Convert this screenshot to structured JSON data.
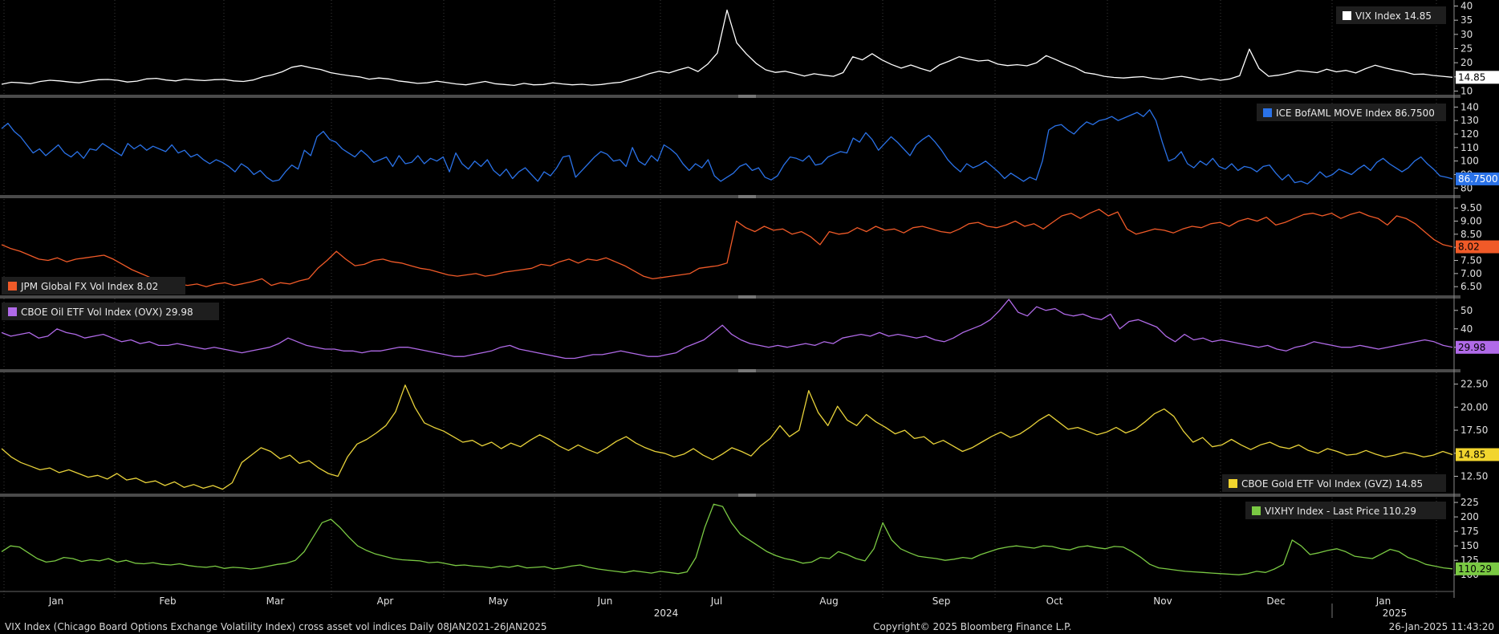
{
  "chart_data": {
    "type": "line",
    "months": [
      "Jan",
      "Feb",
      "Mar",
      "Apr",
      "May",
      "Jun",
      "Jul",
      "Aug",
      "Sep",
      "Oct",
      "Nov",
      "Dec",
      "Jan"
    ],
    "year_labels": [
      "2024",
      "2025"
    ],
    "panels": [
      {
        "name": "VIX Index",
        "legend": "VIX Index 14.85",
        "last_label": "14.85",
        "color": "#ffffff",
        "badge_color": "#ffffff",
        "badge_text_color": "#000000",
        "legend_position": "top-right",
        "ylim": [
          9,
          41
        ],
        "ticks": [
          10,
          15,
          20,
          25,
          30,
          35,
          40
        ],
        "tick_labels": [
          "10",
          "15",
          "20",
          "25",
          "30",
          "35",
          "40"
        ],
        "values": [
          12.4,
          13.1,
          12.9,
          12.6,
          13.4,
          13.8,
          13.6,
          13.2,
          12.9,
          13.5,
          14.0,
          14.1,
          13.8,
          13.2,
          13.5,
          14.3,
          14.5,
          13.9,
          13.6,
          14.2,
          13.9,
          13.7,
          14.0,
          14.1,
          13.6,
          13.4,
          13.9,
          15.0,
          15.7,
          16.8,
          18.4,
          19.0,
          18.2,
          17.6,
          16.5,
          15.9,
          15.4,
          15.0,
          14.2,
          14.6,
          14.3,
          13.6,
          13.2,
          12.7,
          12.9,
          13.5,
          13.0,
          12.5,
          12.2,
          12.8,
          13.4,
          12.6,
          12.3,
          12.0,
          12.7,
          12.2,
          12.3,
          12.9,
          12.5,
          12.2,
          12.4,
          12.1,
          12.3,
          12.8,
          13.1,
          14.1,
          15.0,
          16.2,
          17.0,
          16.4,
          17.5,
          18.4,
          16.9,
          19.5,
          23.4,
          38.6,
          27.0,
          23.1,
          19.8,
          17.5,
          16.6,
          17.0,
          16.2,
          15.3,
          16.1,
          15.6,
          15.2,
          16.5,
          22.1,
          21.0,
          23.2,
          21.0,
          19.4,
          18.1,
          19.2,
          18.0,
          17.0,
          19.3,
          20.6,
          22.1,
          21.3,
          20.6,
          20.9,
          19.5,
          19.0,
          19.3,
          18.9,
          20.0,
          22.5,
          21.1,
          19.5,
          18.3,
          16.5,
          16.0,
          15.2,
          14.8,
          14.6,
          14.9,
          15.1,
          14.5,
          14.2,
          14.8,
          15.2,
          14.6,
          13.9,
          14.4,
          13.8,
          14.3,
          15.4,
          24.8,
          18.0,
          15.2,
          15.6,
          16.3,
          17.2,
          16.9,
          16.5,
          17.7,
          16.8,
          17.3,
          16.4,
          17.9,
          19.1,
          18.2,
          17.4,
          16.8,
          15.9,
          16.0,
          15.5,
          15.2,
          14.85
        ]
      },
      {
        "name": "ICE BofAML MOVE Index",
        "legend": "ICE BofAML MOVE Index 86.7500",
        "last_label": "86.7500",
        "color": "#2a72e8",
        "badge_color": "#2a72e8",
        "badge_text_color": "#ffffff",
        "legend_position": "top-right",
        "ylim": [
          76,
          145
        ],
        "ticks": [
          80,
          90,
          100,
          110,
          120,
          130,
          140
        ],
        "tick_labels": [
          "80",
          "90",
          "100",
          "110",
          "120",
          "130",
          "140"
        ],
        "values": [
          124,
          128,
          122,
          118,
          112,
          106,
          109,
          104,
          108,
          112,
          106,
          103,
          107,
          102,
          109,
          108,
          113,
          110,
          107,
          104,
          113,
          109,
          112,
          108,
          111,
          109,
          107,
          112,
          106,
          108,
          103,
          105,
          101,
          98,
          101,
          99,
          96,
          92,
          98,
          95,
          90,
          93,
          88,
          85,
          86,
          92,
          97,
          94,
          108,
          104,
          118,
          122,
          116,
          114,
          109,
          106,
          103,
          108,
          104,
          99,
          101,
          103,
          96,
          104,
          98,
          99,
          104,
          98,
          102,
          100,
          103,
          92,
          106,
          98,
          94,
          100,
          96,
          101,
          93,
          89,
          94,
          87,
          92,
          95,
          90,
          85,
          92,
          89,
          95,
          103,
          104,
          88,
          93,
          98,
          103,
          107,
          105,
          100,
          101,
          96,
          110,
          100,
          97,
          104,
          100,
          112,
          109,
          105,
          98,
          93,
          98,
          95,
          101,
          89,
          85,
          88,
          91,
          96,
          98,
          93,
          95,
          88,
          86,
          89,
          97,
          103,
          102,
          100,
          104,
          97,
          98,
          103,
          105,
          107,
          106,
          117,
          114,
          121,
          116,
          108,
          113,
          118,
          114,
          109,
          104,
          112,
          116,
          119,
          114,
          108,
          101,
          96,
          92,
          98,
          95,
          97,
          100,
          96,
          92,
          87,
          91,
          88,
          85,
          88,
          86,
          100,
          123,
          126,
          127,
          123,
          120,
          125,
          129,
          127,
          130,
          131,
          133,
          130,
          132,
          134,
          136,
          133,
          138,
          130,
          114,
          100,
          102,
          107,
          98,
          95,
          100,
          97,
          102,
          96,
          94,
          98,
          93,
          96,
          95,
          92,
          96,
          97,
          91,
          86,
          90,
          84,
          85,
          83,
          87,
          92,
          88,
          90,
          94,
          92,
          90,
          94,
          97,
          93,
          99,
          102,
          98,
          95,
          92,
          95,
          100,
          103,
          98,
          94,
          89,
          88,
          86.75
        ]
      },
      {
        "name": "JPM Global FX Vol Index",
        "legend": "JPM Global FX Vol Index 8.02",
        "last_label": "8.02",
        "color": "#f05a28",
        "badge_color": "#f05a28",
        "badge_text_color": "#000000",
        "legend_position": "bottom-left",
        "ylim": [
          6.2,
          9.75
        ],
        "ticks": [
          6.5,
          7.0,
          7.5,
          8.0,
          8.5,
          9.0,
          9.5
        ],
        "tick_labels": [
          "6.50",
          "7.00",
          "7.50",
          "8.00",
          "8.50",
          "9.00",
          "9.50"
        ],
        "values": [
          8.1,
          7.95,
          7.85,
          7.7,
          7.55,
          7.5,
          7.6,
          7.45,
          7.55,
          7.6,
          7.65,
          7.7,
          7.55,
          7.35,
          7.15,
          7.0,
          6.85,
          6.75,
          6.65,
          6.6,
          6.55,
          6.6,
          6.5,
          6.6,
          6.65,
          6.55,
          6.62,
          6.7,
          6.8,
          6.55,
          6.65,
          6.6,
          6.72,
          6.8,
          7.2,
          7.5,
          7.85,
          7.55,
          7.3,
          7.35,
          7.5,
          7.55,
          7.45,
          7.4,
          7.3,
          7.2,
          7.15,
          7.05,
          6.95,
          6.9,
          6.95,
          7.0,
          6.9,
          6.95,
          7.05,
          7.1,
          7.15,
          7.2,
          7.35,
          7.3,
          7.45,
          7.55,
          7.4,
          7.55,
          7.5,
          7.6,
          7.45,
          7.3,
          7.1,
          6.9,
          6.8,
          6.85,
          6.9,
          6.95,
          7.0,
          7.2,
          7.25,
          7.3,
          7.4,
          9.0,
          8.75,
          8.6,
          8.8,
          8.65,
          8.7,
          8.5,
          8.6,
          8.4,
          8.1,
          8.6,
          8.5,
          8.55,
          8.75,
          8.6,
          8.8,
          8.65,
          8.7,
          8.55,
          8.75,
          8.8,
          8.7,
          8.6,
          8.55,
          8.7,
          8.9,
          8.95,
          8.8,
          8.75,
          8.85,
          9.0,
          8.8,
          8.9,
          8.7,
          8.95,
          9.2,
          9.3,
          9.1,
          9.3,
          9.45,
          9.2,
          9.35,
          8.7,
          8.5,
          8.6,
          8.7,
          8.65,
          8.55,
          8.7,
          8.8,
          8.75,
          8.9,
          8.95,
          8.8,
          9.0,
          9.1,
          9.0,
          9.15,
          8.85,
          8.95,
          9.1,
          9.25,
          9.3,
          9.2,
          9.3,
          9.1,
          9.25,
          9.35,
          9.2,
          9.1,
          8.85,
          9.2,
          9.1,
          8.9,
          8.6,
          8.3,
          8.1,
          8.02
        ]
      },
      {
        "name": "CBOE Oil ETF Vol Index (OVX)",
        "legend": "CBOE Oil ETF Vol Index (OVX) 29.98",
        "last_label": "29.98",
        "color": "#b06ae8",
        "badge_color": "#b06ae8",
        "badge_text_color": "#000000",
        "legend_position": "top-left",
        "ylim": [
          19,
          56
        ],
        "ticks": [
          30,
          40,
          50
        ],
        "tick_labels": [
          "30",
          "40",
          "50"
        ],
        "values": [
          38,
          36,
          37,
          38,
          35,
          36,
          40,
          38,
          37,
          35,
          36,
          37,
          35,
          33,
          34,
          32,
          33,
          31,
          31,
          32,
          31,
          30,
          29,
          30,
          29,
          28,
          27,
          28,
          29,
          30,
          32,
          35,
          33,
          31,
          30,
          29,
          29,
          28,
          28,
          27,
          28,
          28,
          29,
          30,
          30,
          29,
          28,
          27,
          26,
          25,
          25,
          26,
          27,
          28,
          30,
          31,
          29,
          28,
          27,
          26,
          25,
          24,
          24,
          25,
          26,
          26,
          27,
          28,
          27,
          26,
          25,
          25,
          26,
          27,
          30,
          32,
          34,
          38,
          42,
          37,
          34,
          32,
          31,
          30,
          31,
          30,
          31,
          32,
          31,
          33,
          32,
          35,
          36,
          37,
          36,
          38,
          36,
          37,
          36,
          35,
          36,
          34,
          33,
          35,
          38,
          40,
          42,
          45,
          50,
          56,
          49,
          47,
          52,
          50,
          51,
          48,
          47,
          48,
          46,
          45,
          48,
          40,
          44,
          45,
          43,
          41,
          36,
          33,
          37,
          34,
          35,
          33,
          34,
          33,
          32,
          31,
          30,
          31,
          29,
          28,
          30,
          31,
          33,
          32,
          31,
          30,
          30,
          31,
          30,
          29,
          30,
          31,
          32,
          33,
          34,
          33,
          31,
          29.98
        ]
      },
      {
        "name": "CBOE Gold ETF Vol Index (GVZ)",
        "legend": "CBOE Gold ETF Vol Index (GVZ) 14.85",
        "last_label": "14.85",
        "color": "#e8d23a",
        "badge_color": "#f2d52e",
        "badge_text_color": "#000000",
        "legend_position": "bottom-right",
        "ylim": [
          10.8,
          23.6
        ],
        "ticks": [
          12.5,
          15.0,
          17.5,
          20.0,
          22.5
        ],
        "tick_labels": [
          "12.50",
          "15.00",
          "17.50",
          "20.00",
          "22.50"
        ],
        "values": [
          15.5,
          14.6,
          14.0,
          13.6,
          13.2,
          13.4,
          12.9,
          13.2,
          12.8,
          12.4,
          12.6,
          12.2,
          12.8,
          12.1,
          12.3,
          11.8,
          12.0,
          11.5,
          11.9,
          11.3,
          11.6,
          11.2,
          11.5,
          11.1,
          11.8,
          14.0,
          14.8,
          15.6,
          15.2,
          14.4,
          14.8,
          13.9,
          14.2,
          13.4,
          12.8,
          12.5,
          14.6,
          16.0,
          16.5,
          17.2,
          18.0,
          19.5,
          22.4,
          20.0,
          18.3,
          17.8,
          17.4,
          16.8,
          16.2,
          16.4,
          15.8,
          16.2,
          15.5,
          16.1,
          15.7,
          16.4,
          17.0,
          16.5,
          15.8,
          15.3,
          15.9,
          15.4,
          15.0,
          15.6,
          16.3,
          16.8,
          16.1,
          15.6,
          15.2,
          15.0,
          14.6,
          14.9,
          15.5,
          14.8,
          14.3,
          14.9,
          15.6,
          15.2,
          14.7,
          15.8,
          16.6,
          18.0,
          16.8,
          17.5,
          21.8,
          19.4,
          18.0,
          20.1,
          18.6,
          18.0,
          19.2,
          18.4,
          17.8,
          17.1,
          17.5,
          16.6,
          16.8,
          16.0,
          16.4,
          15.8,
          15.2,
          15.6,
          16.2,
          16.8,
          17.3,
          16.7,
          17.1,
          17.8,
          18.6,
          19.2,
          18.4,
          17.6,
          17.8,
          17.4,
          17.0,
          17.3,
          17.8,
          17.2,
          17.6,
          18.4,
          19.3,
          19.8,
          19.0,
          17.4,
          16.2,
          16.7,
          15.7,
          15.9,
          16.5,
          15.9,
          15.4,
          15.9,
          16.2,
          15.7,
          15.5,
          15.9,
          15.3,
          15.0,
          15.5,
          15.2,
          14.8,
          14.9,
          15.3,
          14.9,
          14.6,
          14.8,
          15.1,
          14.9,
          14.6,
          14.8,
          15.2,
          14.85
        ]
      },
      {
        "name": "VIXHY Index - Last Price",
        "legend": "VIXHY Index - Last Price 110.29",
        "last_label": "110.29",
        "color": "#7ac943",
        "badge_color": "#7ac943",
        "badge_text_color": "#000000",
        "legend_position": "top-right",
        "ylim": [
          92,
          232
        ],
        "ticks": [
          100,
          125,
          150,
          175,
          200,
          225
        ],
        "tick_labels": [
          "100",
          "125",
          "150",
          "175",
          "200",
          "225"
        ],
        "values": [
          140,
          150,
          148,
          138,
          128,
          122,
          124,
          130,
          128,
          123,
          126,
          124,
          128,
          122,
          125,
          120,
          119,
          121,
          118,
          117,
          119,
          116,
          114,
          113,
          115,
          111,
          113,
          112,
          110,
          112,
          115,
          118,
          120,
          125,
          140,
          165,
          190,
          196,
          182,
          165,
          150,
          142,
          136,
          132,
          128,
          126,
          125,
          124,
          121,
          122,
          119,
          116,
          117,
          115,
          114,
          112,
          115,
          113,
          116,
          112,
          113,
          114,
          110,
          112,
          115,
          117,
          113,
          110,
          108,
          106,
          104,
          107,
          105,
          103,
          106,
          104,
          102,
          105,
          130,
          182,
          222,
          218,
          190,
          170,
          160,
          150,
          140,
          133,
          128,
          125,
          120,
          122,
          130,
          128,
          140,
          135,
          128,
          124,
          145,
          190,
          160,
          145,
          138,
          132,
          130,
          128,
          125,
          127,
          130,
          128,
          135,
          140,
          145,
          148,
          150,
          148,
          146,
          150,
          149,
          145,
          143,
          148,
          150,
          147,
          145,
          149,
          148,
          140,
          130,
          118,
          112,
          110,
          108,
          106,
          105,
          104,
          103,
          102,
          101,
          100,
          102,
          106,
          104,
          110,
          118,
          160,
          150,
          135,
          138,
          142,
          145,
          140,
          132,
          130,
          128,
          136,
          144,
          140,
          130,
          125,
          118,
          115,
          112,
          110.29
        ]
      }
    ]
  },
  "footer": {
    "left": "VIX Index (Chicago Board Options Exchange Volatility Index) cross asset vol indices  Daily 08JAN2021-26JAN2025",
    "center": "Copyright© 2025 Bloomberg Finance L.P.",
    "right": "26-Jan-2025 11:43:20"
  },
  "colors": {
    "background": "#000000",
    "separator": "#4a4a4a",
    "axis_text": "#e0e0e0"
  }
}
